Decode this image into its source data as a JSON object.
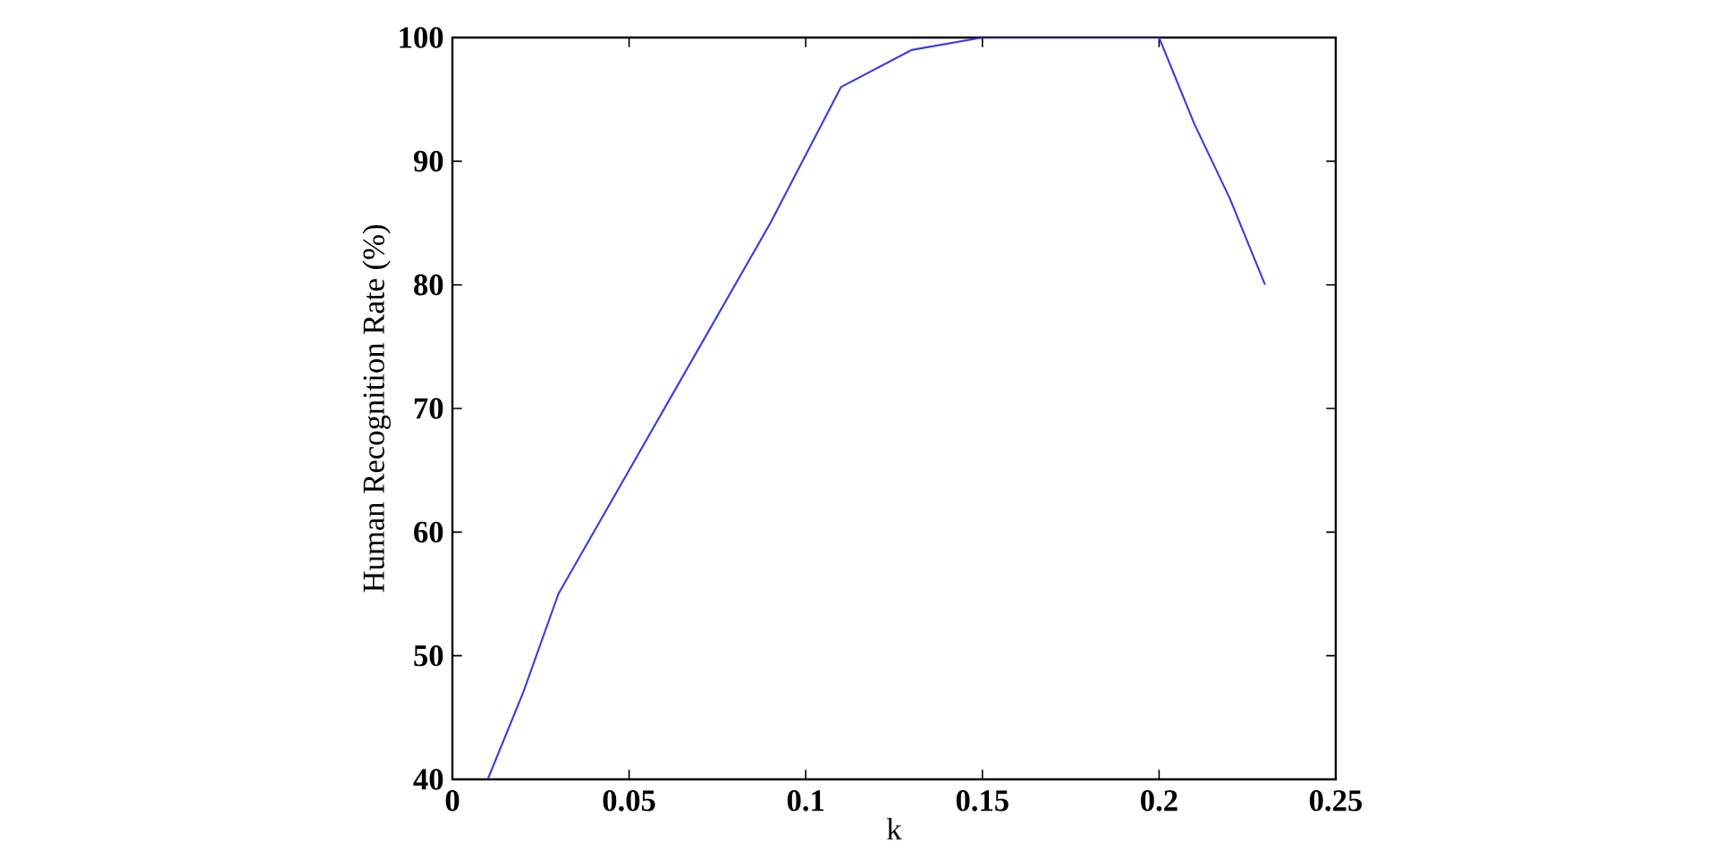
{
  "chart_data": {
    "type": "line",
    "xlabel": "k",
    "ylabel": "Human Recognition Rate (%)",
    "x": [
      0.01,
      0.02,
      0.03,
      0.09,
      0.11,
      0.13,
      0.15,
      0.2,
      0.21,
      0.22,
      0.23
    ],
    "series": [
      {
        "color": "#3c3cdc",
        "values": [
          40,
          47,
          55,
          85,
          96,
          99,
          100,
          100,
          93,
          87,
          80
        ]
      }
    ],
    "xlim": [
      0,
      0.25
    ],
    "ylim": [
      40,
      100
    ],
    "xticks": [
      0,
      0.05,
      0.1,
      0.15,
      0.2,
      0.25
    ],
    "yticks": [
      40,
      50,
      60,
      70,
      80,
      90,
      100
    ],
    "marker": "none",
    "line_style": "solid"
  }
}
